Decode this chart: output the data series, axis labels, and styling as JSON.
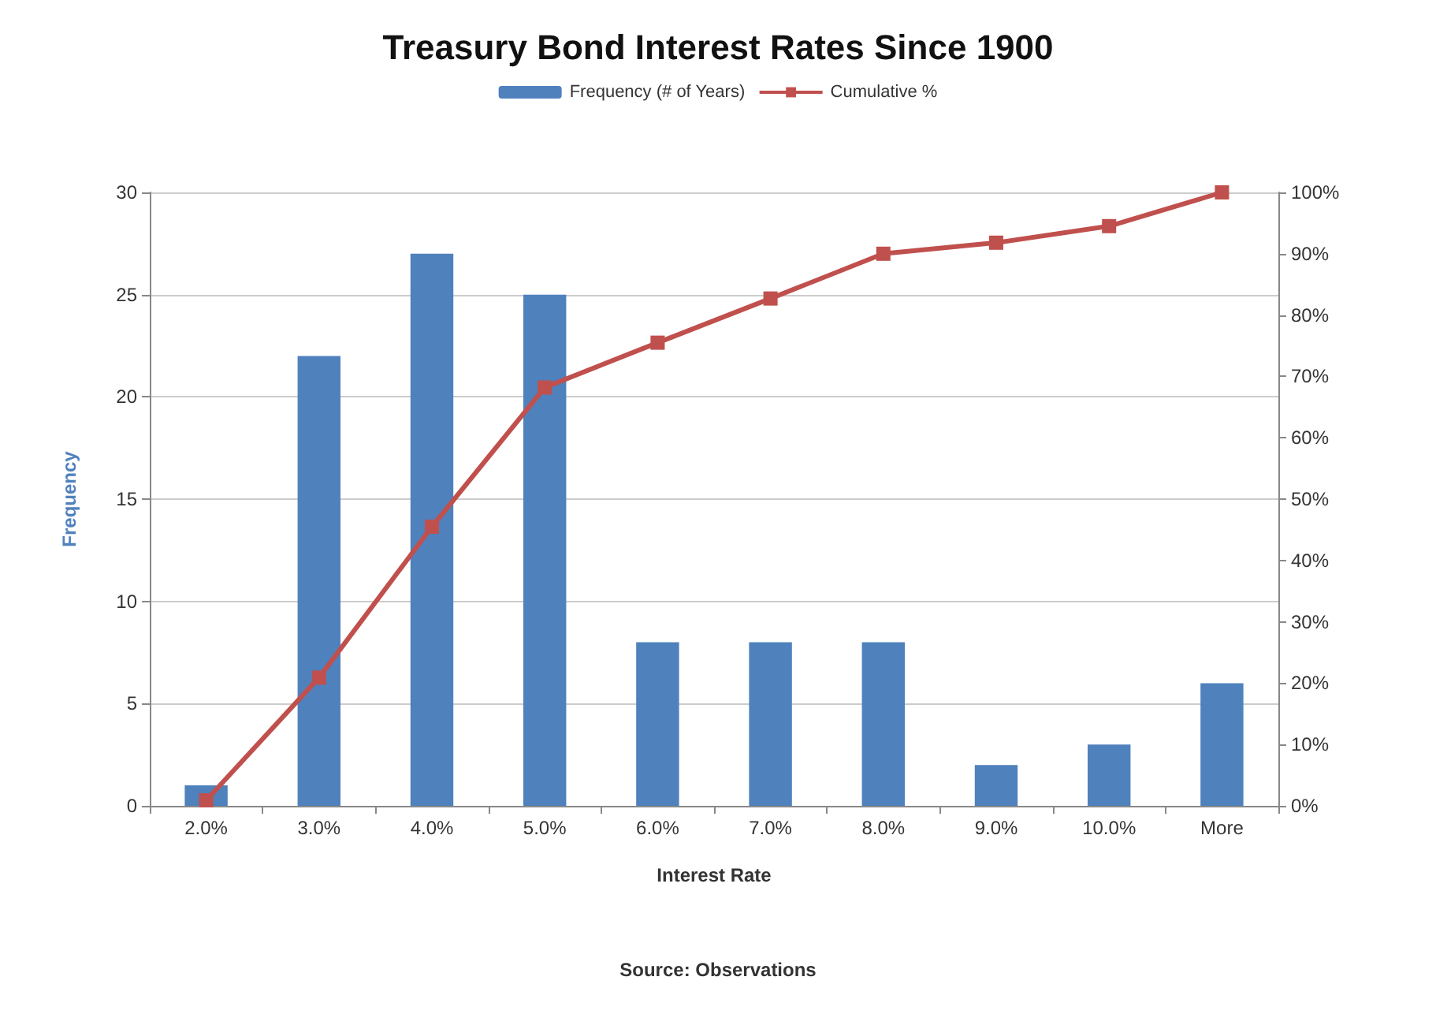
{
  "chart_data": {
    "type": "bar",
    "title": "Treasury Bond Interest Rates Since 1900",
    "xlabel": "Interest Rate",
    "ylabel": "Frequency",
    "annotations": [
      "Source: Observations"
    ],
    "categories": [
      "2.0%",
      "3.0%",
      "4.0%",
      "5.0%",
      "6.0%",
      "7.0%",
      "8.0%",
      "9.0%",
      "10.0%",
      "More"
    ],
    "series": [
      {
        "name": "Frequency (# of Years)",
        "color": "#4f81bd",
        "values": [
          1,
          22,
          27,
          25,
          8,
          8,
          8,
          2,
          3,
          6
        ]
      },
      {
        "name": "Cumulative %",
        "type": "line",
        "axis": "y2",
        "marker": "square",
        "color": "#c0504d",
        "values": [
          0.9,
          20.9,
          45.5,
          68.2,
          75.5,
          82.7,
          90.0,
          91.8,
          94.5,
          100
        ]
      }
    ],
    "ylim": [
      0,
      30
    ],
    "yticks": [
      0,
      5,
      10,
      15,
      20,
      25,
      30
    ],
    "y2lim": [
      0,
      100
    ],
    "y2ticks": [
      {
        "value": 0,
        "label": "0%"
      },
      {
        "value": 10,
        "label": "10%"
      },
      {
        "value": 20,
        "label": "20%"
      },
      {
        "value": 30,
        "label": "30%"
      },
      {
        "value": 40,
        "label": "40%"
      },
      {
        "value": 50,
        "label": "50%"
      },
      {
        "value": 60,
        "label": "60%"
      },
      {
        "value": 70,
        "label": "70%"
      },
      {
        "value": 80,
        "label": "80%"
      },
      {
        "value": 90,
        "label": "90%"
      },
      {
        "value": 100,
        "label": "100%"
      }
    ],
    "grid": "y",
    "legend": "top"
  }
}
